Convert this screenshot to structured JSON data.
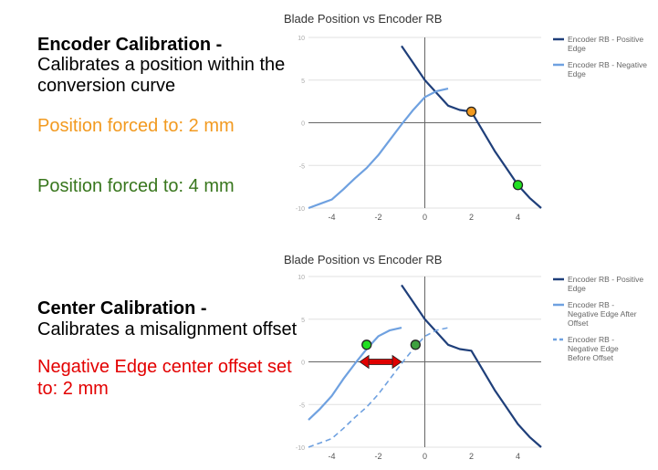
{
  "left": {
    "encoder_title": "Encoder Calibration -",
    "encoder_desc": "Calibrates a position within the conversion curve",
    "encoder_desc_line1": "Calibrates a position within the",
    "encoder_desc_line2": "conversion curve",
    "pos2": "Position forced to: 2 mm",
    "pos4": "Position forced to: 4 mm",
    "center_title": "Center Calibration -",
    "center_desc": "Calibrates a misalignment offset",
    "offset_line1": "Negative Edge center offset set",
    "offset_line2": "to: 2 mm"
  },
  "colors": {
    "positive": "#1f3f7a",
    "negative": "#6fa1e0",
    "orange_marker": "#f29a20",
    "green_marker": "#21e021",
    "arrow": "#e00000",
    "orange_text": "#f29a20",
    "green_text": "#38761d",
    "red_text": "#e30000"
  },
  "chart_data": [
    {
      "type": "line",
      "title": "Blade Position vs Encoder RB",
      "xlim": [
        -5,
        5
      ],
      "ylim": [
        -10,
        10
      ],
      "xticks": [
        "-4",
        "-2",
        "0",
        "2",
        "4"
      ],
      "yticks": [
        "10",
        "5",
        "0",
        "-5",
        "-10"
      ],
      "grid": true,
      "legend": "right",
      "series": [
        {
          "name": "Encoder RB - Positive Edge",
          "name_lines": [
            "Encoder RB - Positive",
            "Edge"
          ],
          "style": "solid",
          "x": [
            -1,
            -0.5,
            0,
            0.5,
            1,
            1.5,
            2,
            2.5,
            3,
            3.5,
            4,
            4.5,
            5
          ],
          "y": [
            9,
            7,
            5,
            3.5,
            2,
            1.5,
            1.3,
            -1,
            -3.3,
            -5.3,
            -7.3,
            -8.8,
            -10
          ]
        },
        {
          "name": "Encoder RB - Negative Edge",
          "name_lines": [
            "Encoder RB - Negative",
            "Edge"
          ],
          "style": "solid",
          "x": [
            -5,
            -4.5,
            -4,
            -3.5,
            -3,
            -2.5,
            -2,
            -1.5,
            -1,
            -0.5,
            0,
            0.5,
            1
          ],
          "y": [
            -10,
            -9.5,
            -9,
            -7.8,
            -6.5,
            -5.3,
            -3.8,
            -2,
            -0.2,
            1.5,
            3,
            3.7,
            4
          ]
        }
      ],
      "markers": [
        {
          "x": 2,
          "y": 1.3,
          "color": "#f29a20"
        },
        {
          "x": 4,
          "y": -7.3,
          "color": "#21e021"
        }
      ]
    },
    {
      "type": "line",
      "title": "Blade Position vs Encoder RB",
      "xlim": [
        -5,
        5
      ],
      "ylim": [
        -10,
        10
      ],
      "xticks": [
        "-4",
        "-2",
        "0",
        "2",
        "4"
      ],
      "yticks": [
        "10",
        "5",
        "0",
        "-5",
        "-10"
      ],
      "grid": true,
      "legend": "right",
      "series": [
        {
          "name": "Encoder RB - Positive Edge",
          "name_lines": [
            "Encoder RB - Positive",
            "Edge"
          ],
          "style": "solid",
          "x": [
            -1,
            -0.5,
            0,
            0.5,
            1,
            1.5,
            2,
            2.5,
            3,
            3.5,
            4,
            4.5,
            5
          ],
          "y": [
            9,
            7,
            5,
            3.5,
            2,
            1.5,
            1.3,
            -1,
            -3.3,
            -5.3,
            -7.3,
            -8.8,
            -10
          ]
        },
        {
          "name": "Encoder RB - Negative Edge After Offset",
          "name_lines": [
            "Encoder RB -",
            "Negative Edge After",
            "Offset"
          ],
          "style": "solid",
          "x": [
            -5,
            -4.5,
            -4,
            -3.5,
            -3,
            -2.5,
            -2,
            -1.5,
            -1
          ],
          "y": [
            -6.8,
            -5.5,
            -4,
            -2,
            -0.2,
            1.5,
            3,
            3.7,
            4
          ]
        },
        {
          "name": "Encoder RB - Negative Edge Before Offset",
          "name_lines": [
            "Encoder RB -",
            "Negative Edge",
            "Before Offset"
          ],
          "style": "dashed",
          "x": [
            -5,
            -4.5,
            -4,
            -3.5,
            -3,
            -2.5,
            -2,
            -1.5,
            -1,
            -0.5,
            0,
            0.5,
            1
          ],
          "y": [
            -10,
            -9.5,
            -9,
            -7.8,
            -6.5,
            -5.3,
            -3.8,
            -2,
            -0.2,
            1.5,
            3,
            3.7,
            4
          ]
        }
      ],
      "markers": [
        {
          "x": -2.5,
          "y": 2,
          "color": "#21e021"
        },
        {
          "x": -0.4,
          "y": 2,
          "color": "#3fa03f"
        }
      ],
      "arrow": {
        "from_x": -2.8,
        "to_x": -1.0,
        "y": 0,
        "color": "#e00000"
      }
    }
  ]
}
